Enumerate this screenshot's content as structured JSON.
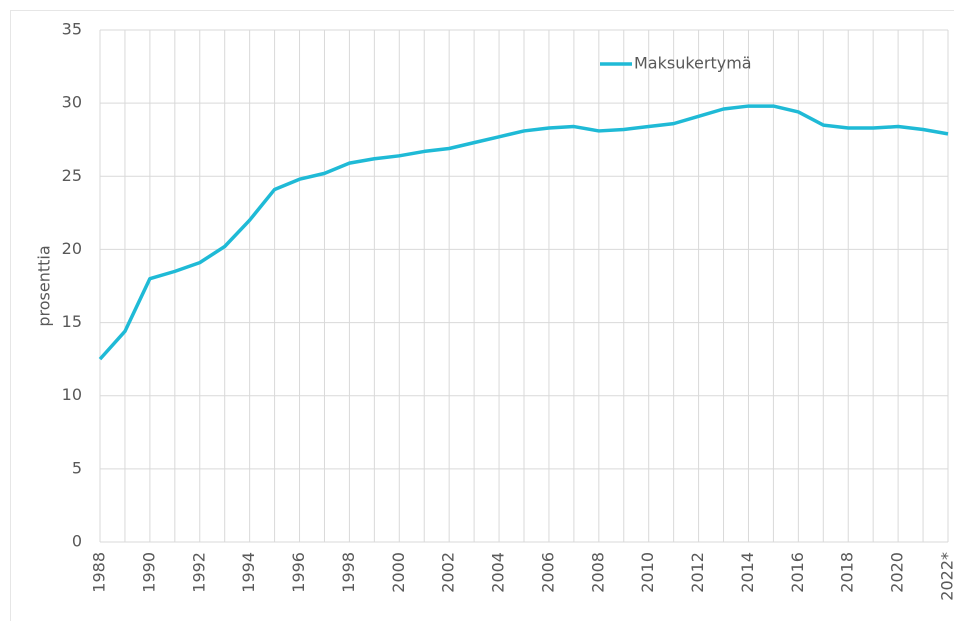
{
  "chart_data": {
    "type": "line",
    "y_label": "prosenttia",
    "categories": [
      "1988",
      null,
      "1990",
      null,
      "1992",
      null,
      "1994",
      null,
      "1996",
      null,
      "1998",
      null,
      "2000",
      null,
      "2002",
      null,
      "2004",
      null,
      "2006",
      null,
      "2008",
      null,
      "2010",
      null,
      "2012",
      null,
      "2014",
      null,
      "2016",
      null,
      "2018",
      null,
      "2020",
      null,
      "2022*"
    ],
    "series": [
      {
        "name": "Maksukertymä",
        "color": "#1fbad6",
        "values": [
          12.5,
          14.4,
          18.0,
          18.5,
          19.1,
          20.2,
          22.0,
          24.1,
          24.8,
          25.2,
          25.9,
          26.2,
          26.4,
          26.7,
          26.9,
          27.3,
          27.7,
          28.1,
          28.3,
          28.4,
          28.1,
          28.2,
          28.4,
          28.6,
          29.1,
          29.6,
          29.8,
          29.8,
          29.4,
          28.5,
          28.3,
          28.3,
          28.4,
          28.2,
          27.9
        ]
      }
    ],
    "ylim": [
      0,
      35
    ],
    "yticks": [
      0,
      5,
      10,
      15,
      20,
      25,
      30,
      35
    ],
    "grid": true,
    "legend": "top-right"
  }
}
